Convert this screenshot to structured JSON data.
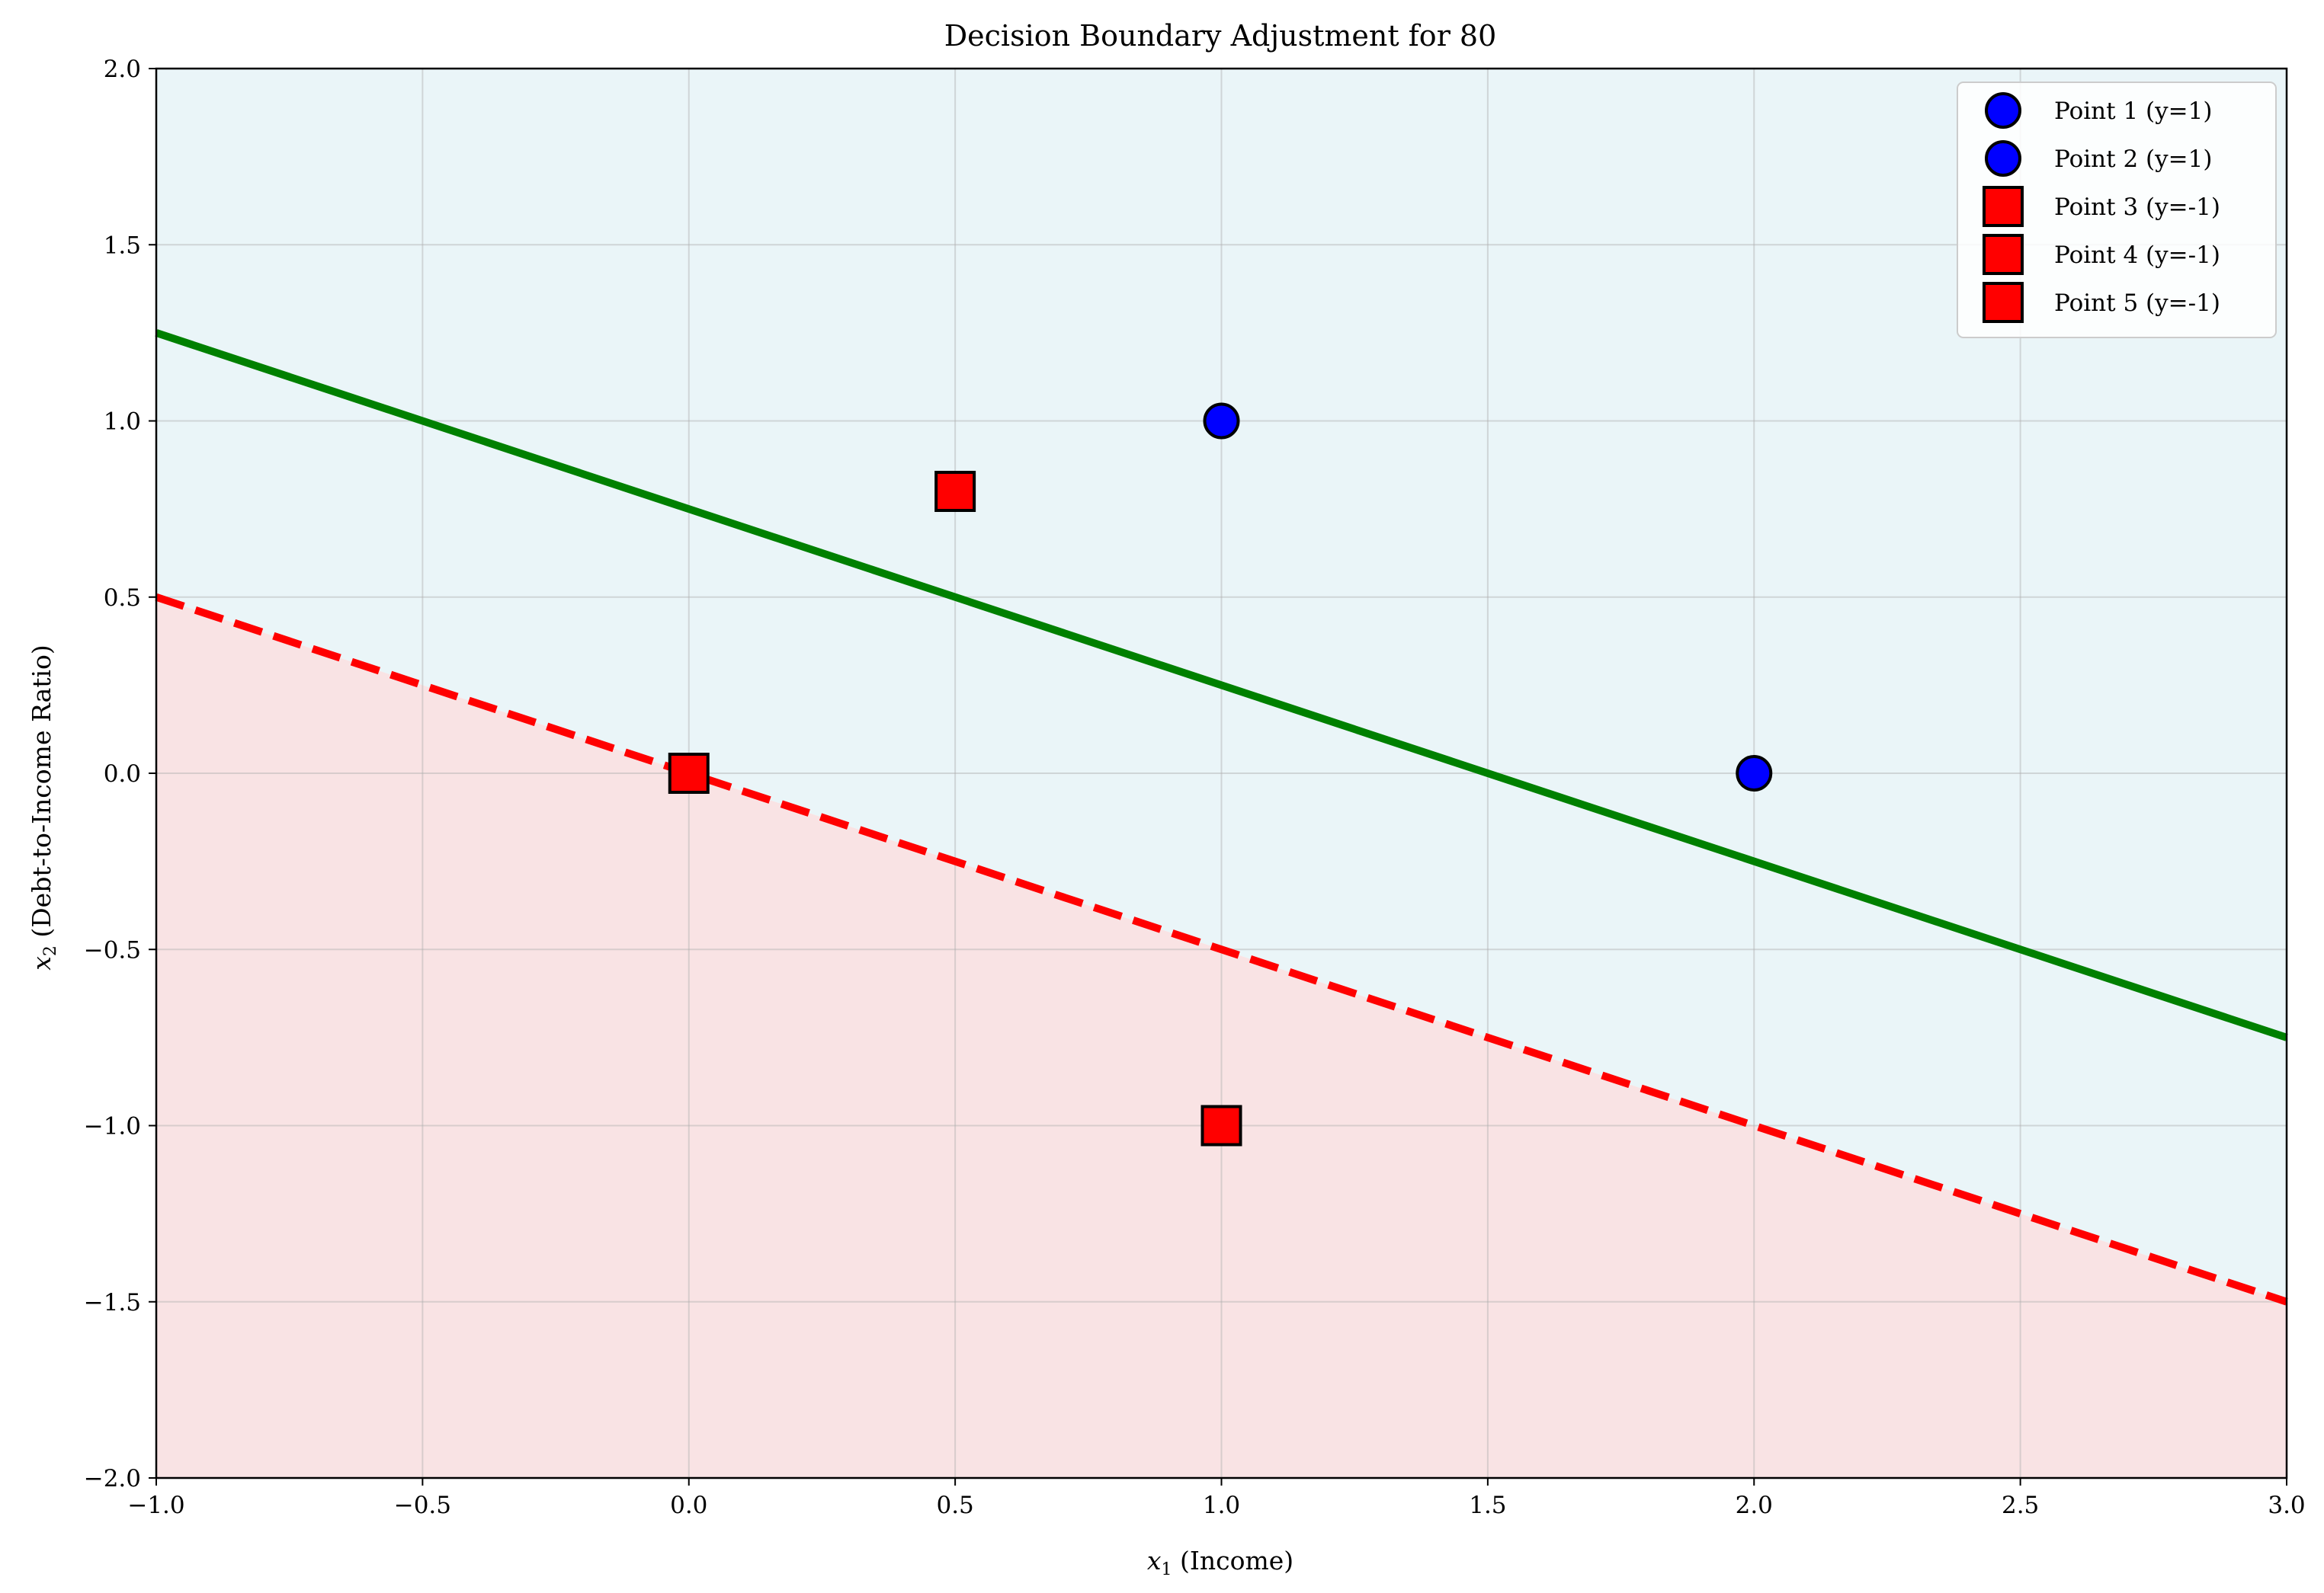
{
  "chart_data": {
    "type": "scatter",
    "title": "Decision Boundary Adjustment for 80",
    "xlabel_symbol": "x",
    "xlabel_sub": "1",
    "xlabel_text": " (Income)",
    "ylabel_symbol": "x",
    "ylabel_sub": "2",
    "ylabel_text": " (Debt-to-Income Ratio)",
    "xlim": [
      -1.0,
      3.0
    ],
    "ylim": [
      -2.0,
      2.0
    ],
    "xticks": [
      -1.0,
      -0.5,
      0.0,
      0.5,
      1.0,
      1.5,
      2.0,
      2.5,
      3.0
    ],
    "yticks": [
      -2.0,
      -1.5,
      -1.0,
      -0.5,
      0.0,
      0.5,
      1.0,
      1.5,
      2.0
    ],
    "xtick_labels": [
      "−1.0",
      "−0.5",
      "0.0",
      "0.5",
      "1.0",
      "1.5",
      "2.0",
      "2.5",
      "3.0"
    ],
    "ytick_labels": [
      "−2.0",
      "−1.5",
      "−1.0",
      "−0.5",
      "0.0",
      "0.5",
      "1.0",
      "1.5",
      "2.0"
    ],
    "grid": true,
    "legend_position": "top-right",
    "regions": [
      {
        "side": "above",
        "boundary": "dashed",
        "color": "#eaf5f8"
      },
      {
        "side": "below",
        "boundary": "dashed",
        "color": "#f9e3e4"
      }
    ],
    "lines": [
      {
        "style": "solid",
        "color": "#008000",
        "x": [
          -1.0,
          3.0
        ],
        "y": [
          1.25,
          -0.75
        ]
      },
      {
        "style": "dashed",
        "color": "#ff0000",
        "x": [
          -1.0,
          3.0
        ],
        "y": [
          0.5,
          -1.5
        ]
      }
    ],
    "series": [
      {
        "name": "Point 1 (y=1)",
        "marker": "circle",
        "color": "#0000ff",
        "x": [
          1.0
        ],
        "y": [
          1.0
        ]
      },
      {
        "name": "Point 2 (y=1)",
        "marker": "circle",
        "color": "#0000ff",
        "x": [
          2.0
        ],
        "y": [
          0.0
        ]
      },
      {
        "name": "Point 3 (y=-1)",
        "marker": "square",
        "color": "#ff0000",
        "x": [
          0.5
        ],
        "y": [
          0.8
        ]
      },
      {
        "name": "Point 4 (y=-1)",
        "marker": "square",
        "color": "#ff0000",
        "x": [
          0.0
        ],
        "y": [
          0.0
        ]
      },
      {
        "name": "Point 5 (y=-1)",
        "marker": "square",
        "color": "#ff0000",
        "x": [
          1.0
        ],
        "y": [
          -1.0
        ]
      }
    ]
  }
}
